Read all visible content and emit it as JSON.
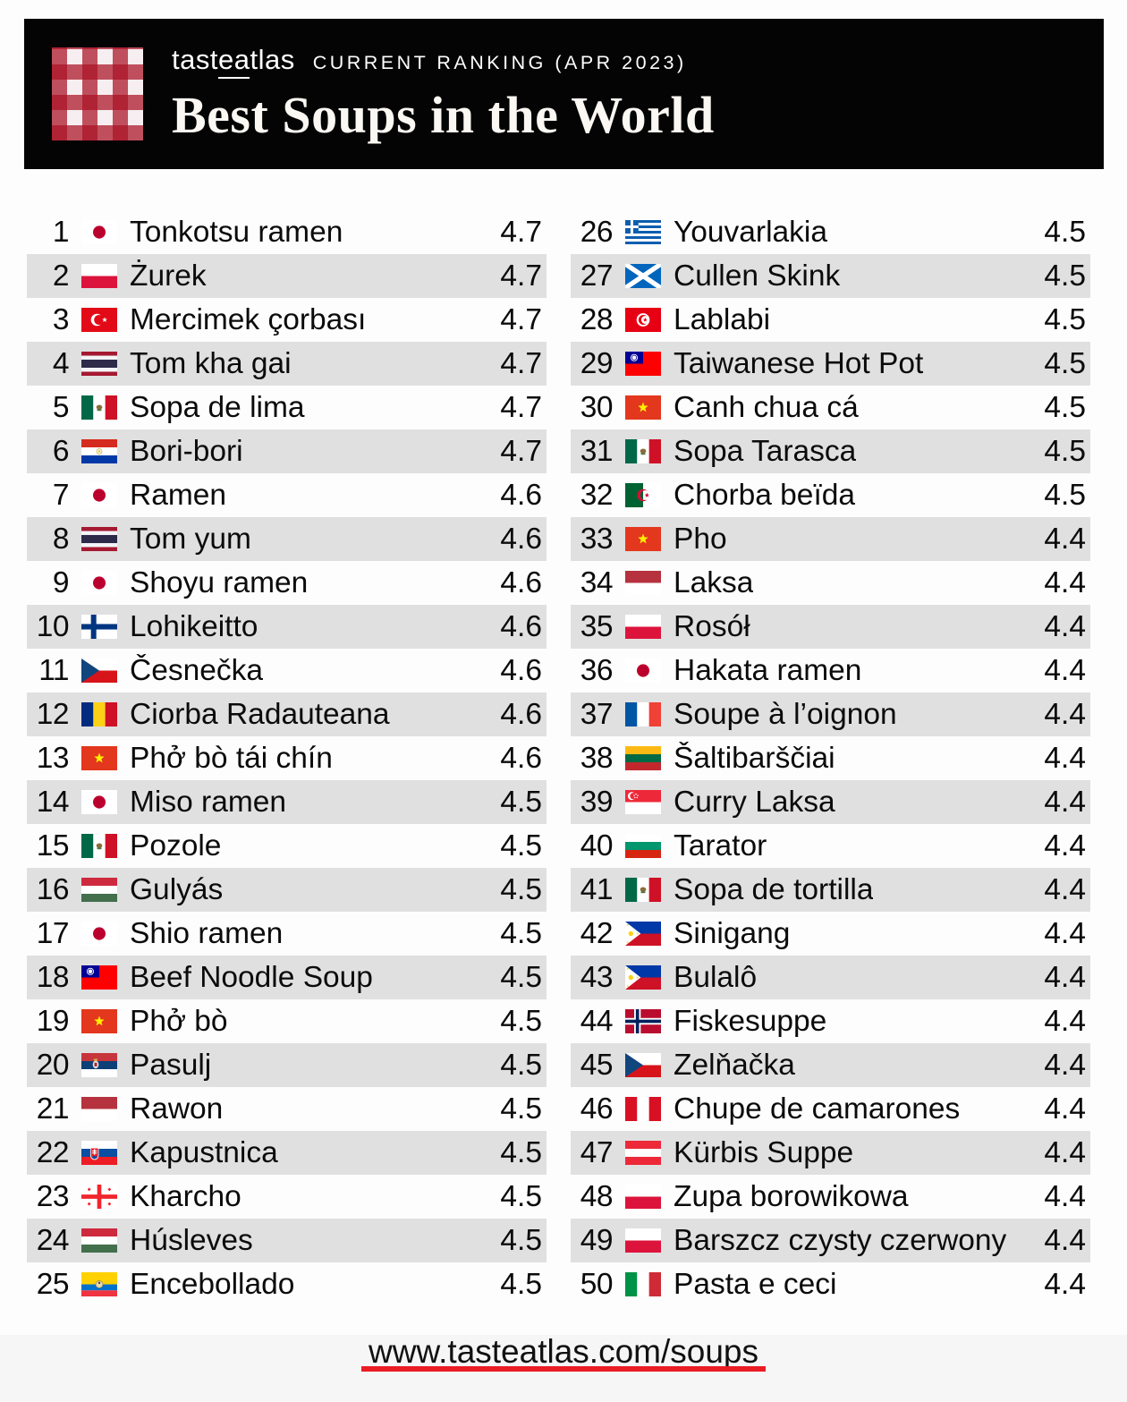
{
  "header": {
    "brand_p1": "tast",
    "brand_p2": "ea",
    "brand_p3": "tlas",
    "ranking_label": "CURRENT RANKING (APR 2023)",
    "title": "Best Soups in the World"
  },
  "footer": {
    "url": "www.tasteatlas.com/soups"
  },
  "colors": {
    "header_bg": "#040404",
    "row_alt": "#e0e0e0",
    "accent_red": "#ea1c24",
    "logo_red": "#aa1224",
    "footer_band": "#f6f6f6"
  },
  "chart_data": {
    "type": "table",
    "title": "Best Soups in the World",
    "subtitle": "CURRENT RANKING (APR 2023)",
    "columns": [
      "rank",
      "country",
      "soup",
      "rating"
    ],
    "rating_scale": [
      0,
      5
    ],
    "rows": [
      {
        "rank": 1,
        "country": "Japan",
        "flag": "japan",
        "name": "Tonkotsu ramen",
        "rating": "4.7"
      },
      {
        "rank": 2,
        "country": "Poland",
        "flag": "poland",
        "name": "Żurek",
        "rating": "4.7"
      },
      {
        "rank": 3,
        "country": "Turkey",
        "flag": "turkey",
        "name": "Mercimek çorbası",
        "rating": "4.7"
      },
      {
        "rank": 4,
        "country": "Thailand",
        "flag": "thailand",
        "name": "Tom kha gai",
        "rating": "4.7"
      },
      {
        "rank": 5,
        "country": "Mexico",
        "flag": "mexico",
        "name": "Sopa de lima",
        "rating": "4.7"
      },
      {
        "rank": 6,
        "country": "Paraguay",
        "flag": "paraguay",
        "name": "Bori-bori",
        "rating": "4.7"
      },
      {
        "rank": 7,
        "country": "Japan",
        "flag": "japan",
        "name": "Ramen",
        "rating": "4.6"
      },
      {
        "rank": 8,
        "country": "Thailand",
        "flag": "thailand",
        "name": "Tom yum",
        "rating": "4.6"
      },
      {
        "rank": 9,
        "country": "Japan",
        "flag": "japan",
        "name": "Shoyu ramen",
        "rating": "4.6"
      },
      {
        "rank": 10,
        "country": "Finland",
        "flag": "finland",
        "name": "Lohikeitto",
        "rating": "4.6"
      },
      {
        "rank": 11,
        "country": "Czech Republic",
        "flag": "czechia",
        "name": "Česnečka",
        "rating": "4.6"
      },
      {
        "rank": 12,
        "country": "Romania",
        "flag": "romania",
        "name": "Ciorba Radauteana",
        "rating": "4.6"
      },
      {
        "rank": 13,
        "country": "Vietnam",
        "flag": "vietnam",
        "name": "Phở bò tái chín",
        "rating": "4.6"
      },
      {
        "rank": 14,
        "country": "Japan",
        "flag": "japan",
        "name": "Miso ramen",
        "rating": "4.5"
      },
      {
        "rank": 15,
        "country": "Mexico",
        "flag": "mexico",
        "name": "Pozole",
        "rating": "4.5"
      },
      {
        "rank": 16,
        "country": "Hungary",
        "flag": "hungary",
        "name": "Gulyás",
        "rating": "4.5"
      },
      {
        "rank": 17,
        "country": "Japan",
        "flag": "japan",
        "name": "Shio ramen",
        "rating": "4.5"
      },
      {
        "rank": 18,
        "country": "Taiwan",
        "flag": "taiwan",
        "name": "Beef Noodle Soup",
        "rating": "4.5"
      },
      {
        "rank": 19,
        "country": "Vietnam",
        "flag": "vietnam",
        "name": "Phở bò",
        "rating": "4.5"
      },
      {
        "rank": 20,
        "country": "Serbia",
        "flag": "serbia",
        "name": "Pasulj",
        "rating": "4.5"
      },
      {
        "rank": 21,
        "country": "Indonesia",
        "flag": "indonesia",
        "name": "Rawon",
        "rating": "4.5"
      },
      {
        "rank": 22,
        "country": "Slovakia",
        "flag": "slovakia",
        "name": "Kapustnica",
        "rating": "4.5"
      },
      {
        "rank": 23,
        "country": "Georgia",
        "flag": "georgia",
        "name": "Kharcho",
        "rating": "4.5"
      },
      {
        "rank": 24,
        "country": "Hungary",
        "flag": "hungary",
        "name": "Húsleves",
        "rating": "4.5"
      },
      {
        "rank": 25,
        "country": "Ecuador",
        "flag": "ecuador",
        "name": "Encebollado",
        "rating": "4.5"
      },
      {
        "rank": 26,
        "country": "Greece",
        "flag": "greece",
        "name": "Youvarlakia",
        "rating": "4.5"
      },
      {
        "rank": 27,
        "country": "Scotland",
        "flag": "scotland",
        "name": "Cullen Skink",
        "rating": "4.5"
      },
      {
        "rank": 28,
        "country": "Tunisia",
        "flag": "tunisia",
        "name": "Lablabi",
        "rating": "4.5"
      },
      {
        "rank": 29,
        "country": "Taiwan",
        "flag": "taiwan",
        "name": "Taiwanese Hot Pot",
        "rating": "4.5"
      },
      {
        "rank": 30,
        "country": "Vietnam",
        "flag": "vietnam",
        "name": "Canh chua cá",
        "rating": "4.5"
      },
      {
        "rank": 31,
        "country": "Mexico",
        "flag": "mexico",
        "name": "Sopa Tarasca",
        "rating": "4.5"
      },
      {
        "rank": 32,
        "country": "Algeria",
        "flag": "algeria",
        "name": "Chorba beïda",
        "rating": "4.5"
      },
      {
        "rank": 33,
        "country": "Vietnam",
        "flag": "vietnam",
        "name": "Pho",
        "rating": "4.4"
      },
      {
        "rank": 34,
        "country": "Indonesia",
        "flag": "indonesia",
        "name": "Laksa",
        "rating": "4.4"
      },
      {
        "rank": 35,
        "country": "Poland",
        "flag": "poland",
        "name": "Rosół",
        "rating": "4.4"
      },
      {
        "rank": 36,
        "country": "Japan",
        "flag": "japan",
        "name": "Hakata ramen",
        "rating": "4.4"
      },
      {
        "rank": 37,
        "country": "France",
        "flag": "france",
        "name": "Soupe à l’oignon",
        "rating": "4.4"
      },
      {
        "rank": 38,
        "country": "Lithuania",
        "flag": "lithuania",
        "name": "Šaltibarščiai",
        "rating": "4.4"
      },
      {
        "rank": 39,
        "country": "Singapore",
        "flag": "singapore",
        "name": "Curry Laksa",
        "rating": "4.4"
      },
      {
        "rank": 40,
        "country": "Bulgaria",
        "flag": "bulgaria",
        "name": "Tarator",
        "rating": "4.4"
      },
      {
        "rank": 41,
        "country": "Mexico",
        "flag": "mexico",
        "name": "Sopa de tortilla",
        "rating": "4.4"
      },
      {
        "rank": 42,
        "country": "Philippines",
        "flag": "philippines",
        "name": "Sinigang",
        "rating": "4.4"
      },
      {
        "rank": 43,
        "country": "Philippines",
        "flag": "philippines",
        "name": "Bulalô",
        "rating": "4.4"
      },
      {
        "rank": 44,
        "country": "Norway",
        "flag": "norway",
        "name": "Fiskesuppe",
        "rating": "4.4"
      },
      {
        "rank": 45,
        "country": "Czech Republic",
        "flag": "czechia",
        "name": "Zelňačka",
        "rating": "4.4"
      },
      {
        "rank": 46,
        "country": "Peru",
        "flag": "peru",
        "name": "Chupe de camarones",
        "rating": "4.4"
      },
      {
        "rank": 47,
        "country": "Austria",
        "flag": "austria",
        "name": "Kürbis Suppe",
        "rating": "4.4"
      },
      {
        "rank": 48,
        "country": "Poland",
        "flag": "poland",
        "name": "Zupa borowikowa",
        "rating": "4.4"
      },
      {
        "rank": 49,
        "country": "Poland",
        "flag": "poland",
        "name": "Barszcz czysty czerwony",
        "rating": "4.4"
      },
      {
        "rank": 50,
        "country": "Italy",
        "flag": "italy",
        "name": "Pasta e ceci",
        "rating": "4.4"
      }
    ]
  }
}
